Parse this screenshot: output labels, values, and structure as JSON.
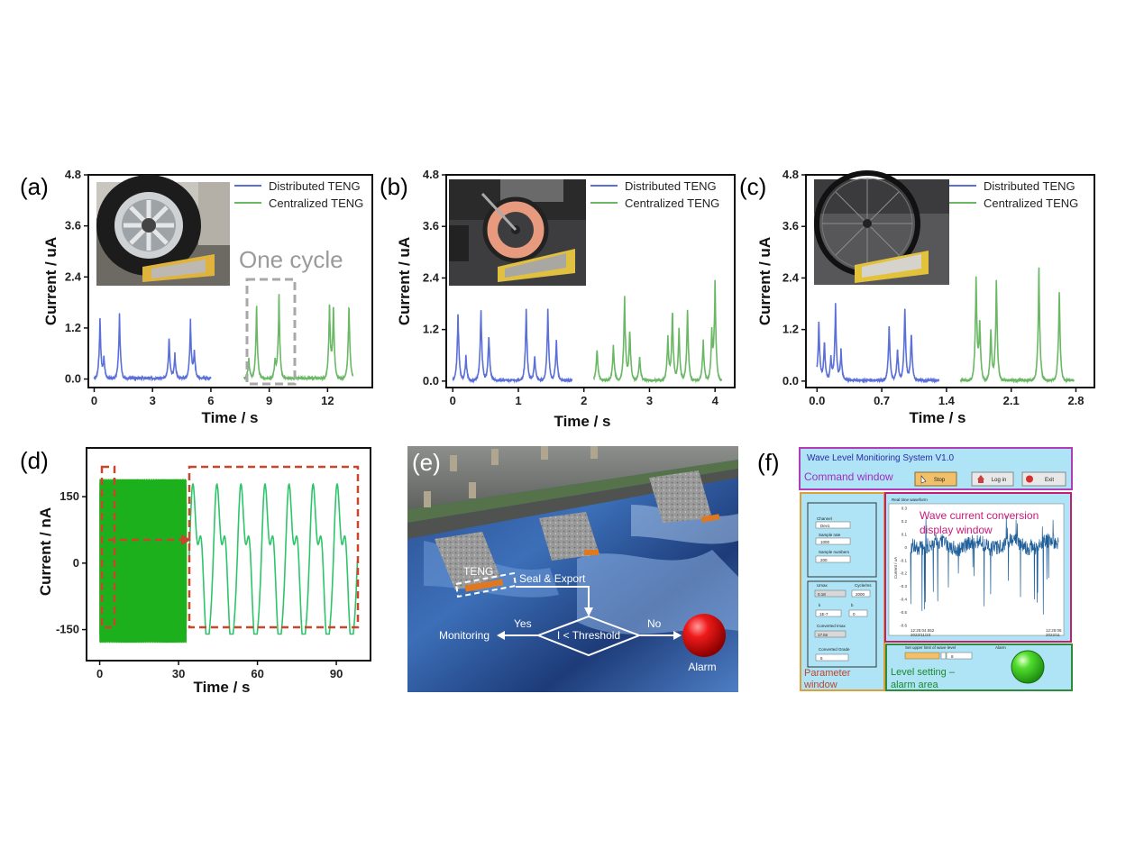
{
  "panels": {
    "a": "(a)",
    "b": "(b)",
    "c": "(c)",
    "d": "(d)",
    "e": "(e)",
    "f": "(f)"
  },
  "colors": {
    "distributed": "#5b6fd8",
    "centralized": "#6ab865",
    "panel_d_wave": "#1db01d",
    "panel_d_zoom": "#2ec56a",
    "dash_box": "#c8462c",
    "cycle_box": "#a8a8a8"
  },
  "chart_data": [
    {
      "id": "a",
      "type": "line",
      "xlabel": "Time / s",
      "ylabel": "Current / uA",
      "xlim": [
        -0.3,
        14.3
      ],
      "ylim": [
        -0.2,
        4.8
      ],
      "xticks": [
        "0",
        "3",
        "6",
        "9",
        "12"
      ],
      "xtick_values": [
        0,
        3,
        6,
        9,
        12
      ],
      "yticks": [
        "0.0",
        "1.2",
        "2.4",
        "3.6",
        "4.8"
      ],
      "ytick_values": [
        0,
        1.2,
        2.4,
        3.6,
        4.8
      ],
      "legend": [
        "Distributed TENG",
        "Centralized TENG"
      ],
      "annotation": "One cycle",
      "series": [
        {
          "name": "Distributed TENG",
          "peaks": [
            [
              0.3,
              1.45
            ],
            [
              0.5,
              0.5
            ],
            [
              1.3,
              1.6
            ],
            [
              3.85,
              1.0
            ],
            [
              4.15,
              0.6
            ],
            [
              4.95,
              1.4
            ],
            [
              5.15,
              0.7
            ]
          ],
          "x_range": [
            0,
            6
          ]
        },
        {
          "name": "Centralized TENG",
          "peaks": [
            [
              7.95,
              0.5
            ],
            [
              8.35,
              1.85
            ],
            [
              9.3,
              0.45
            ],
            [
              9.5,
              2.05
            ],
            [
              12.1,
              1.8
            ],
            [
              12.3,
              1.8
            ],
            [
              13.1,
              1.9
            ]
          ],
          "x_range": [
            7.7,
            13.3
          ]
        }
      ]
    },
    {
      "id": "b",
      "type": "line",
      "xlabel": "Time / s",
      "ylabel": "Current / uA",
      "xlim": [
        -0.1,
        4.3
      ],
      "ylim": [
        -0.15,
        4.8
      ],
      "xticks": [
        "0",
        "1",
        "2",
        "3",
        "4"
      ],
      "xtick_values": [
        0,
        1,
        2,
        3,
        4
      ],
      "yticks": [
        "0.0",
        "1.2",
        "2.4",
        "3.6",
        "4.8"
      ],
      "ytick_values": [
        0,
        1.2,
        2.4,
        3.6,
        4.8
      ],
      "legend": [
        "Distributed TENG",
        "Centralized TENG"
      ],
      "series": [
        {
          "name": "Distributed TENG",
          "peaks": [
            [
              0.08,
              1.7
            ],
            [
              0.2,
              0.6
            ],
            [
              0.43,
              1.85
            ],
            [
              0.55,
              1.15
            ],
            [
              1.12,
              1.8
            ],
            [
              1.25,
              0.6
            ],
            [
              1.45,
              1.8
            ],
            [
              1.58,
              1.0
            ]
          ],
          "x_range": [
            0,
            1.82
          ]
        },
        {
          "name": "Centralized TENG",
          "peaks": [
            [
              2.2,
              0.8
            ],
            [
              2.45,
              0.9
            ],
            [
              2.62,
              2.15
            ],
            [
              2.7,
              1.3
            ],
            [
              2.85,
              0.6
            ],
            [
              3.28,
              1.1
            ],
            [
              3.35,
              1.75
            ],
            [
              3.45,
              1.3
            ],
            [
              3.58,
              1.8
            ],
            [
              3.82,
              1.0
            ],
            [
              3.95,
              1.15
            ],
            [
              4.0,
              2.4
            ]
          ],
          "x_range": [
            2.15,
            4.1
          ]
        }
      ]
    },
    {
      "id": "c",
      "type": "line",
      "xlabel": "Time / s",
      "ylabel": "Current / uA",
      "xlim": [
        -0.12,
        3.0
      ],
      "ylim": [
        -0.15,
        4.8
      ],
      "xticks": [
        "0.0",
        "0.7",
        "1.4",
        "2.1",
        "2.8"
      ],
      "xtick_values": [
        0,
        0.7,
        1.4,
        2.1,
        2.8
      ],
      "yticks": [
        "0.0",
        "1.2",
        "2.4",
        "3.6",
        "4.8"
      ],
      "ytick_values": [
        0,
        1.2,
        2.4,
        3.6,
        4.8
      ],
      "legend": [
        "Distributed TENG",
        "Centralized TENG"
      ],
      "series": [
        {
          "name": "Distributed TENG",
          "peaks": [
            [
              0.02,
              1.5
            ],
            [
              0.08,
              1.0
            ],
            [
              0.15,
              0.6
            ],
            [
              0.2,
              1.85
            ],
            [
              0.26,
              0.75
            ],
            [
              0.78,
              1.4
            ],
            [
              0.87,
              0.8
            ],
            [
              0.95,
              1.85
            ],
            [
              1.02,
              1.2
            ]
          ],
          "x_range": [
            0,
            1.32
          ]
        },
        {
          "name": "Centralized TENG",
          "peaks": [
            [
              1.72,
              2.6
            ],
            [
              1.76,
              1.5
            ],
            [
              1.88,
              1.3
            ],
            [
              1.94,
              2.5
            ],
            [
              2.4,
              2.8
            ],
            [
              2.62,
              2.3
            ]
          ],
          "x_range": [
            1.55,
            2.78
          ]
        }
      ]
    },
    {
      "id": "d",
      "type": "line",
      "xlabel": "Time / s",
      "ylabel": "Current / nA",
      "xlim": [
        -5,
        103
      ],
      "ylim": [
        -220,
        260
      ],
      "xticks": [
        "0",
        "30",
        "60",
        "90"
      ],
      "xtick_values": [
        0,
        30,
        60,
        90
      ],
      "yticks": [
        "-150",
        "0",
        "150"
      ],
      "ytick_values": [
        -150,
        0,
        150
      ],
      "series": [
        {
          "name": "",
          "x_range": [
            0,
            33
          ],
          "amplitude": [
            -180,
            190
          ]
        },
        {
          "name": "",
          "x_range": [
            34,
            98
          ],
          "cycles": 7,
          "amplitude": [
            -160,
            180
          ]
        }
      ]
    }
  ],
  "flow": {
    "teng": "TENG",
    "seal_export": "Seal & Export",
    "condition": "I < Threshold",
    "yes": "Yes",
    "no": "No",
    "monitoring": "Monitoring",
    "alarm": "Alarm"
  },
  "ui": {
    "title": "Wave Level Monitioring System V1.0",
    "command_window": "Command window",
    "stop": "Stop",
    "login": "Log in",
    "exit": "Exit",
    "parameter_window": "Parameter window",
    "channel_label": "Channel",
    "channel_value": "Dev1",
    "sample_rate_label": "Sample rate",
    "sample_rate_value": "1000",
    "sample_numbers_label": "Sample numbers",
    "sample_numbers_value": "200",
    "umax_label": "Umax",
    "umax_value": "0.18",
    "cycle_label": "Cycle/ms",
    "cycle_value": "2000",
    "k_label": "k",
    "k_value": "1E-7",
    "b_label": "b",
    "b_value": "0",
    "converted_imax_label": "Converted Imax",
    "converted_imax_value": "17.6n",
    "converted_grade_label": "Converted Grade",
    "converted_grade_value": "5",
    "rt_waveform_label": "Real time waveform",
    "display_window": "Wave current conversion display window",
    "y_axis_label": "Current / uA",
    "time_start": "12:25:04.552",
    "date_start": "2022/11/23",
    "time_end": "12:25:06",
    "date_end": "2022/11",
    "level_setting": "Level setting –alarm area",
    "upper_limit_label": "Set upper limit of wave level",
    "upper_limit_value": "8",
    "alarm_label": "Alarm",
    "wave_yticks": [
      "0.3",
      "0.2",
      "0.1",
      "0",
      "-0.1",
      "-0.2",
      "-0.3",
      "-0.4",
      "-0.5",
      "-0.6"
    ]
  }
}
